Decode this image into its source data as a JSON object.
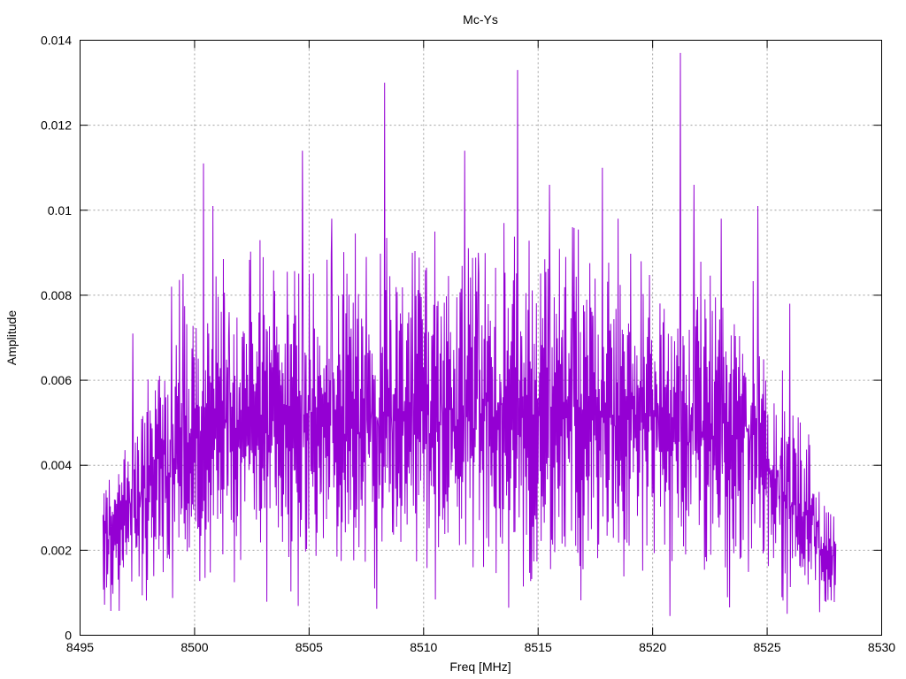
{
  "chart_data": {
    "type": "line",
    "title": "Mc-Ys",
    "xlabel": "Freq [MHz]",
    "ylabel": "Amplitude",
    "xlim": [
      8495,
      8530
    ],
    "ylim": [
      0,
      0.014
    ],
    "x_ticks": [
      8495,
      8500,
      8505,
      8510,
      8515,
      8520,
      8525,
      8530
    ],
    "y_ticks": [
      0,
      0.002,
      0.004,
      0.006,
      0.008,
      0.01,
      0.012,
      0.014
    ],
    "y_tick_labels": [
      "0",
      "0.002",
      "0.004",
      "0.006",
      "0.008",
      "0.01",
      "0.012",
      "0.014"
    ],
    "grid": true,
    "legend": "none",
    "series": [
      {
        "color": "#9400d3",
        "x_start": 8496.0,
        "x_end": 8528.0,
        "peaks": [
          {
            "x": 8497.3,
            "y": 0.0071
          },
          {
            "x": 8499.0,
            "y": 0.0082
          },
          {
            "x": 8499.5,
            "y": 0.0085
          },
          {
            "x": 8500.4,
            "y": 0.0111
          },
          {
            "x": 8500.8,
            "y": 0.0101
          },
          {
            "x": 8501.5,
            "y": 0.0076
          },
          {
            "x": 8502.4,
            "y": 0.008
          },
          {
            "x": 8503.5,
            "y": 0.0081
          },
          {
            "x": 8504.7,
            "y": 0.0114
          },
          {
            "x": 8505.0,
            "y": 0.0085
          },
          {
            "x": 8506.0,
            "y": 0.0098
          },
          {
            "x": 8507.5,
            "y": 0.0089
          },
          {
            "x": 8508.3,
            "y": 0.013
          },
          {
            "x": 8508.3,
            "y": 0.0106
          },
          {
            "x": 8509.5,
            "y": 0.009
          },
          {
            "x": 8510.5,
            "y": 0.0095
          },
          {
            "x": 8511.8,
            "y": 0.0114
          },
          {
            "x": 8512.4,
            "y": 0.009
          },
          {
            "x": 8513.5,
            "y": 0.0097
          },
          {
            "x": 8514.1,
            "y": 0.0133
          },
          {
            "x": 8515.5,
            "y": 0.0106
          },
          {
            "x": 8516.5,
            "y": 0.0096
          },
          {
            "x": 8517.8,
            "y": 0.011
          },
          {
            "x": 8518.5,
            "y": 0.0098
          },
          {
            "x": 8519.5,
            "y": 0.0088
          },
          {
            "x": 8521.2,
            "y": 0.0137
          },
          {
            "x": 8521.2,
            "y": 0.0126
          },
          {
            "x": 8521.8,
            "y": 0.0106
          },
          {
            "x": 8523.0,
            "y": 0.0098
          },
          {
            "x": 8524.6,
            "y": 0.0101
          },
          {
            "x": 8526.0,
            "y": 0.0078
          },
          {
            "x": 8527.5,
            "y": 0.0028
          }
        ]
      }
    ]
  }
}
